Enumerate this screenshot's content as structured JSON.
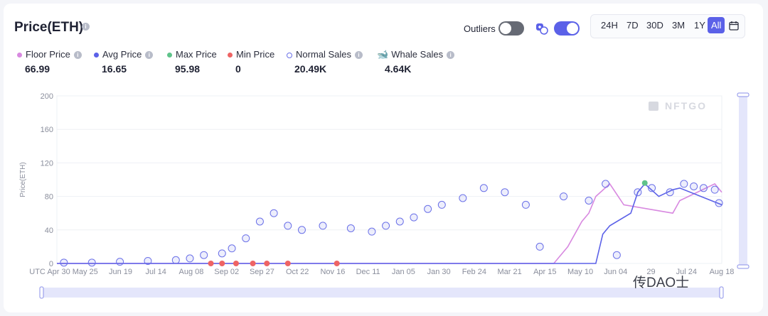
{
  "header": {
    "title": "Price(ETH)",
    "outliers_label": "Outliers"
  },
  "ranges": [
    "24H",
    "7D",
    "30D",
    "3M",
    "1Y",
    "All"
  ],
  "active_range": "All",
  "stats": [
    {
      "label": "Floor Price",
      "value": "66.99",
      "color": "#d889e0"
    },
    {
      "label": "Avg Price",
      "value": "16.65",
      "color": "#5b61e8"
    },
    {
      "label": "Max Price",
      "value": "95.98",
      "color": "#5fc38a"
    },
    {
      "label": "Min Price",
      "value": "0",
      "color": "#ee6464"
    },
    {
      "label": "Normal Sales",
      "value": "20.49K",
      "color": "#6b71e8"
    },
    {
      "label": "Whale Sales",
      "value": "4.64K",
      "color": "#4aa8d8"
    }
  ],
  "watermark": "NFTGO",
  "corner_mark": "传DAO士",
  "chart_data": {
    "type": "line",
    "title": "Price(ETH)",
    "ylabel": "Price(ETH)",
    "xlabel": "",
    "ylim": [
      0,
      200
    ],
    "yticks": [
      0,
      40,
      80,
      120,
      160,
      200
    ],
    "xtick_labels": [
      "UTC Apr 30",
      "May 25",
      "Jun 19",
      "Jul 14",
      "Aug 08",
      "Sep 02",
      "Sep 27",
      "Oct 22",
      "Nov 16",
      "Dec 11",
      "Jan 05",
      "Jan 30",
      "Feb 24",
      "Mar 21",
      "Apr 15",
      "May 10",
      "Jun 04",
      "29",
      "Jul 24",
      "Aug 18"
    ],
    "x_range": [
      0,
      475
    ],
    "series": [
      {
        "name": "Floor Price",
        "color": "#d889e0",
        "x": [
          0,
          355,
          365,
          375,
          380,
          385,
          395,
          405,
          440,
          445,
          470,
          475
        ],
        "y": [
          0,
          0,
          20,
          50,
          60,
          80,
          95,
          70,
          60,
          75,
          95,
          85
        ]
      },
      {
        "name": "Avg Price",
        "color": "#5b61e8",
        "x": [
          0,
          385,
          390,
          395,
          410,
          415,
          420,
          430,
          440,
          445,
          475
        ],
        "y": [
          0,
          0,
          35,
          45,
          60,
          85,
          95,
          80,
          88,
          90,
          70
        ]
      },
      {
        "name": "Normal Sales",
        "color": "#6b71e8",
        "type": "scatter",
        "x": [
          5,
          25,
          45,
          65,
          85,
          95,
          105,
          118,
          125,
          135,
          145,
          155,
          165,
          175,
          190,
          210,
          225,
          235,
          245,
          255,
          265,
          275,
          290,
          305,
          320,
          335,
          345,
          362,
          380,
          392,
          400,
          415,
          425,
          438,
          448,
          455,
          462,
          470,
          473
        ],
        "y": [
          1,
          1,
          2,
          3,
          4,
          6,
          10,
          12,
          18,
          30,
          50,
          60,
          45,
          40,
          45,
          42,
          38,
          45,
          50,
          55,
          65,
          70,
          78,
          90,
          85,
          70,
          20,
          80,
          75,
          95,
          10,
          85,
          90,
          85,
          95,
          92,
          90,
          88,
          72
        ]
      },
      {
        "name": "Min Price",
        "color": "#ee6464",
        "type": "scatter",
        "x": [
          110,
          118,
          128,
          140,
          150,
          165,
          200
        ],
        "y": [
          0,
          0,
          0,
          0,
          0,
          0,
          0
        ]
      },
      {
        "name": "Max Price",
        "color": "#5fc38a",
        "type": "scatter",
        "x": [
          420
        ],
        "y": [
          96
        ]
      }
    ]
  }
}
